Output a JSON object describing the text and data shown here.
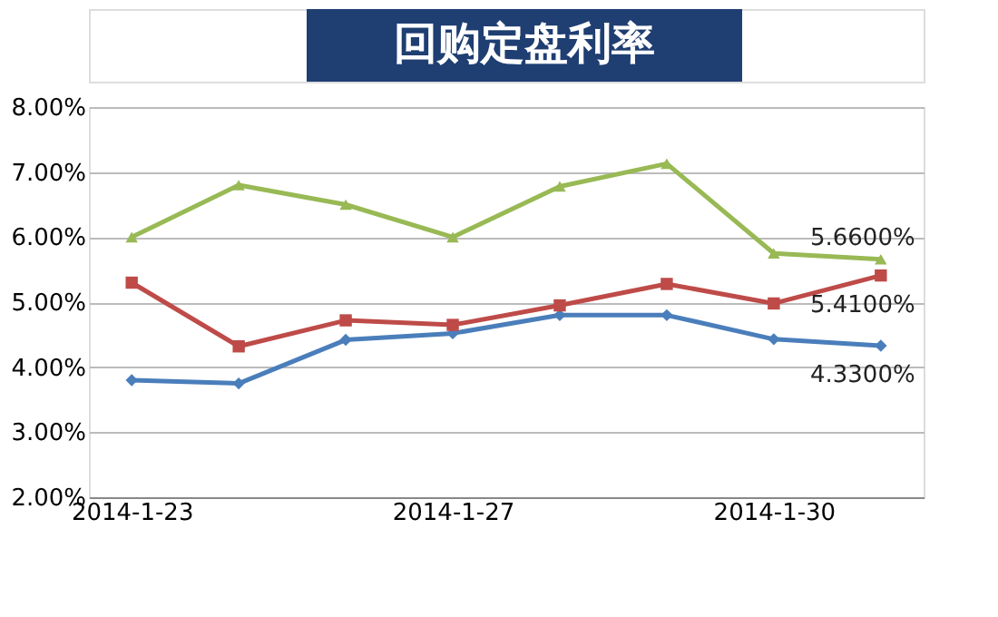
{
  "chart_data": {
    "type": "line",
    "title": "回购定盘利率",
    "categories": [
      "2014-1-23",
      null,
      null,
      "2014-1-27",
      null,
      null,
      "2014-1-30",
      null
    ],
    "series": [
      {
        "color": "#4a7ebb",
        "marker": "diamond",
        "values": [
          3.8,
          3.75,
          4.42,
          4.52,
          4.8,
          4.8,
          4.43,
          4.33
        ],
        "value_labels": [
          null,
          null,
          null,
          null,
          null,
          null,
          null,
          "4.3300%"
        ]
      },
      {
        "color": "#be4b48",
        "marker": "square",
        "values": [
          5.3,
          4.32,
          4.72,
          4.65,
          4.95,
          5.28,
          4.98,
          5.41
        ],
        "value_labels": [
          null,
          null,
          null,
          null,
          null,
          null,
          null,
          "5.4100%"
        ]
      },
      {
        "color": "#98b954",
        "marker": "triangle",
        "values": [
          6.0,
          6.8,
          6.5,
          6.0,
          6.78,
          7.13,
          5.75,
          5.66
        ],
        "value_labels": [
          null,
          null,
          null,
          null,
          null,
          null,
          null,
          "5.6600%"
        ]
      }
    ],
    "ylim": [
      2,
      8
    ],
    "yticks": [
      {
        "value": 2,
        "label": "2.00%"
      },
      {
        "value": 3,
        "label": "3.00%"
      },
      {
        "value": 4,
        "label": "4.00%"
      },
      {
        "value": 5,
        "label": "5.00%"
      },
      {
        "value": 6,
        "label": "6.00%"
      },
      {
        "value": 7,
        "label": "7.00%"
      },
      {
        "value": 8,
        "label": "8.00%"
      }
    ],
    "grid": "y",
    "legend": false,
    "line_style": "solid"
  }
}
